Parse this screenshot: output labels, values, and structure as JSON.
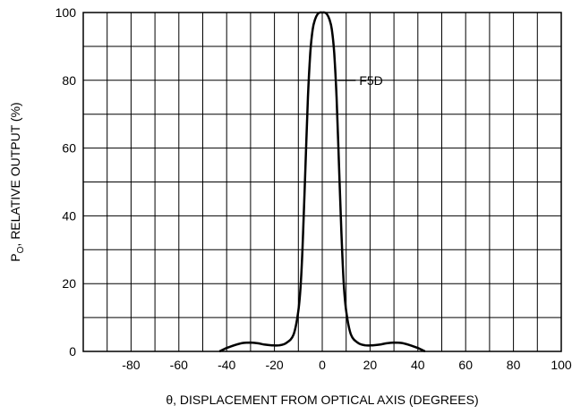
{
  "chart_data": {
    "type": "line",
    "xlabel": "θ, DISPLACEMENT FROM OPTICAL AXIS (DEGREES)",
    "ylabel_main": "P",
    "ylabel_sub": "O",
    "ylabel_rest": ", RELATIVE OUTPUT (%)",
    "xlim": [
      -100,
      100
    ],
    "ylim": [
      0,
      100
    ],
    "x_ticks": [
      -80,
      -60,
      -40,
      -20,
      0,
      20,
      40,
      60,
      80,
      100
    ],
    "y_ticks": [
      0,
      20,
      40,
      60,
      80,
      100
    ],
    "x_grid_step": 10,
    "y_grid_step": 10,
    "grid": true,
    "series": [
      {
        "name": "F5D",
        "x": [
          -43,
          -40,
          -36,
          -33,
          -30,
          -27,
          -24,
          -21,
          -18,
          -15,
          -12,
          -10,
          -9,
          -8,
          -7,
          -6,
          -5,
          -4,
          -3,
          -2,
          -1,
          0,
          1,
          2,
          3,
          4,
          5,
          6,
          7,
          8,
          9,
          10,
          12,
          15,
          18,
          21,
          24,
          27,
          30,
          33,
          36,
          40,
          43
        ],
        "y": [
          0,
          1,
          2,
          2.5,
          2.6,
          2.4,
          2,
          1.8,
          1.8,
          2.5,
          5,
          12,
          20,
          35,
          55,
          75,
          88,
          95,
          98,
          99.5,
          100,
          100,
          100,
          99.5,
          98,
          95,
          88,
          75,
          55,
          35,
          20,
          12,
          5,
          2.5,
          1.8,
          1.8,
          2,
          2.4,
          2.6,
          2.5,
          2,
          1,
          0
        ]
      }
    ],
    "annotation": {
      "text": "F5D",
      "points_to_x": 6.5,
      "points_to_y": 80
    }
  }
}
